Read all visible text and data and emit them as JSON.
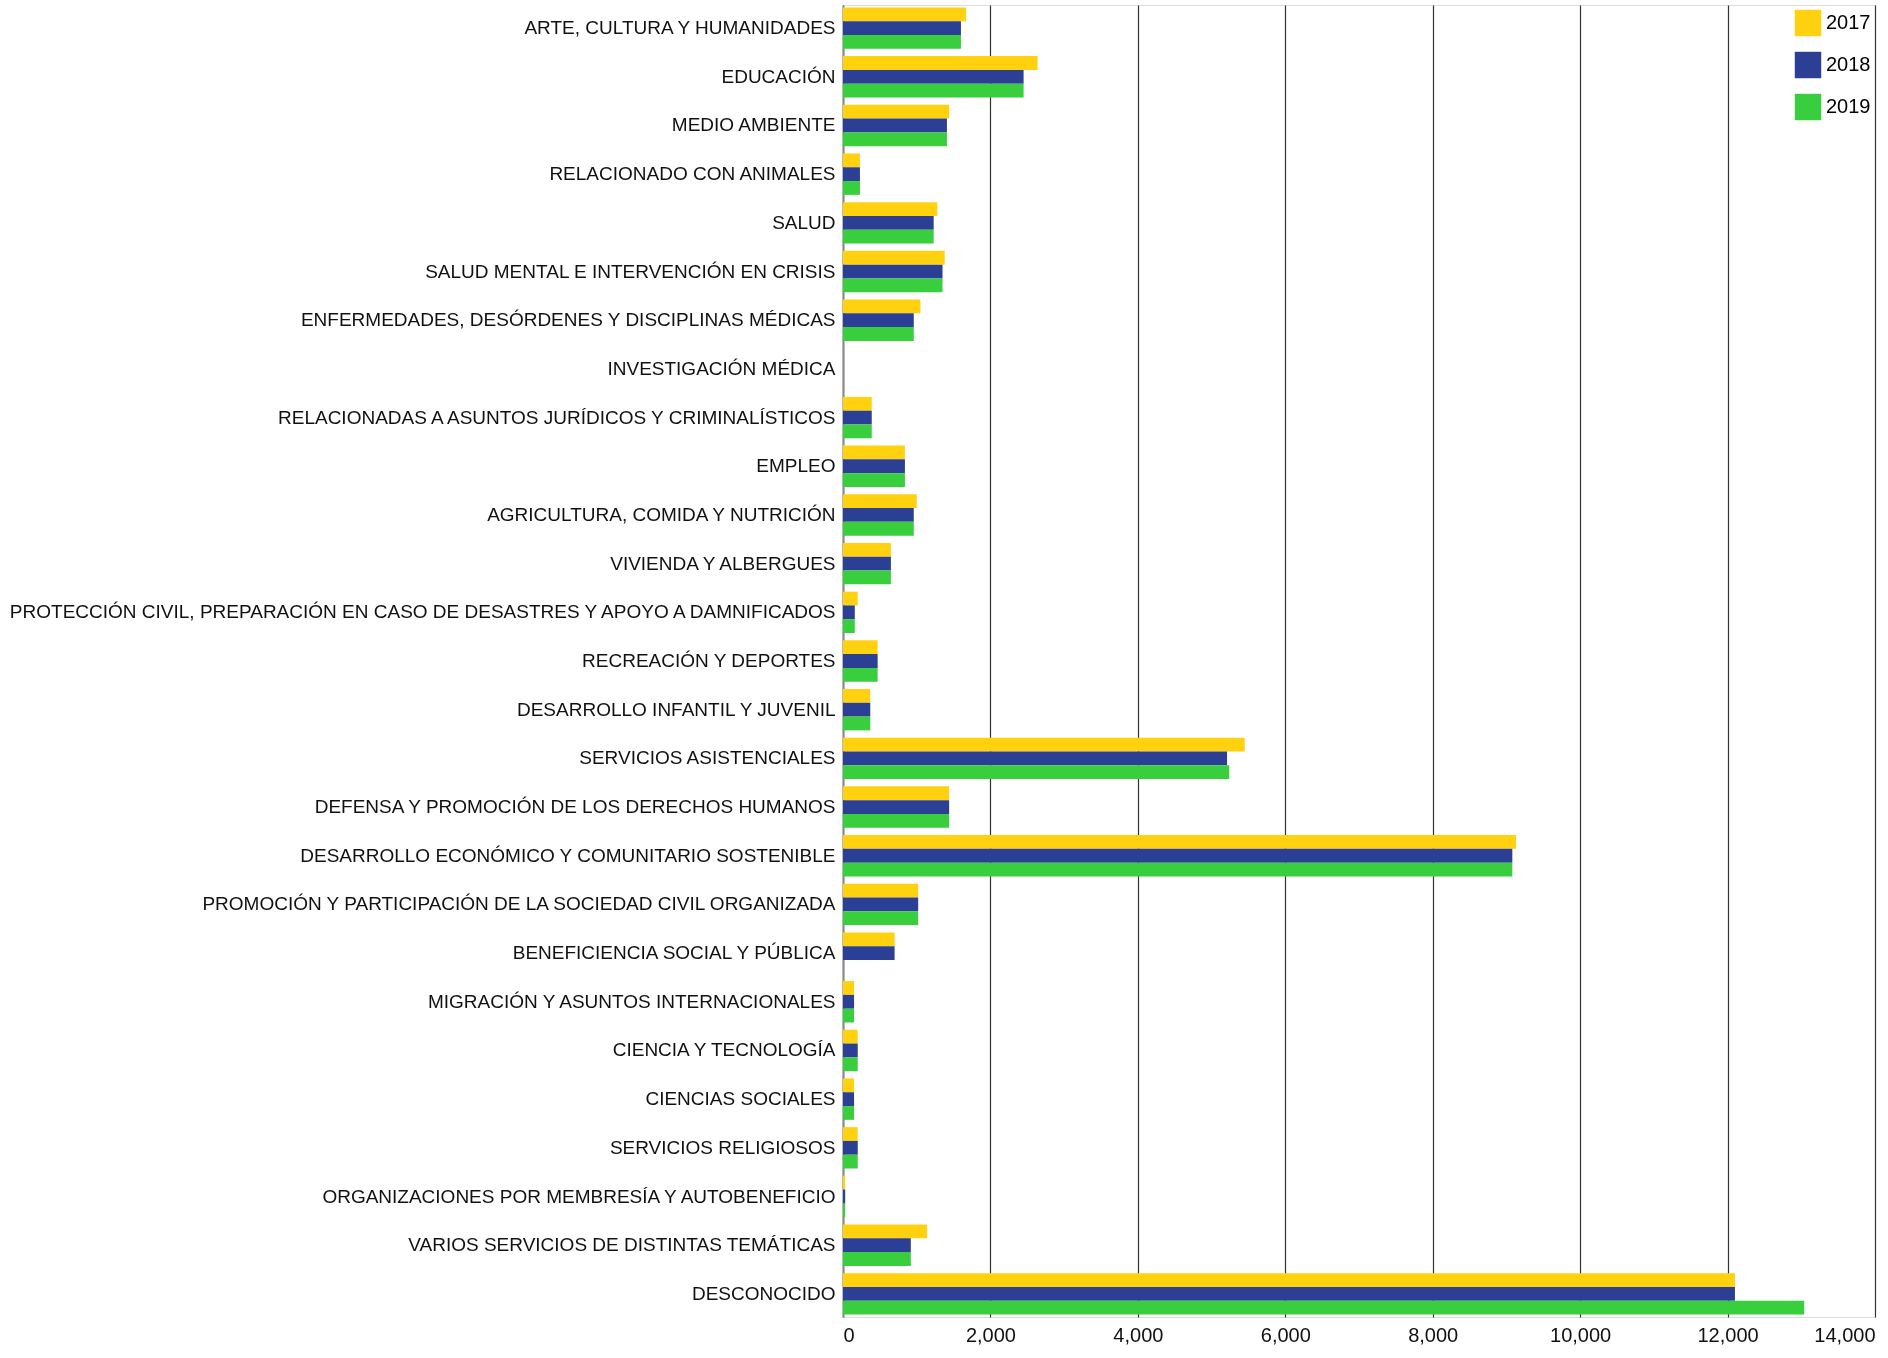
{
  "chart_data": {
    "type": "bar",
    "orientation": "horizontal",
    "categories": [
      "ARTE, CULTURA Y HUMANIDADES",
      "EDUCACIÓN",
      "MEDIO AMBIENTE",
      "RELACIONADO CON ANIMALES",
      "SALUD",
      "SALUD MENTAL E INTERVENCIÓN EN CRISIS",
      "ENFERMEDADES, DESÓRDENES Y DISCIPLINAS MÉDICAS",
      "INVESTIGACIÓN MÉDICA",
      "RELACIONADAS A ASUNTOS JURÍDICOS Y CRIMINALÍSTICOS",
      "EMPLEO",
      "AGRICULTURA, COMIDA Y NUTRICIÓN",
      "VIVIENDA Y ALBERGUES",
      "PROTECCIÓN CIVIL, PREPARACIÓN EN CASO DE DESASTRES Y APOYO A DAMNIFICADOS",
      "RECREACIÓN Y DEPORTES",
      "DESARROLLO INFANTIL Y JUVENIL",
      "SERVICIOS ASISTENCIALES",
      "DEFENSA Y PROMOCIÓN DE LOS DERECHOS HUMANOS",
      "DESARROLLO ECONÓMICO Y COMUNITARIO SOSTENIBLE",
      "PROMOCIÓN Y PARTICIPACIÓN DE LA SOCIEDAD CIVIL ORGANIZADA",
      "BENEFICIENCIA SOCIAL  Y PÚBLICA",
      "MIGRACIÓN Y ASUNTOS INTERNACIONALES",
      "CIENCIA Y TECNOLOGÍA",
      "CIENCIAS SOCIALES",
      "SERVICIOS RELIGIOSOS",
      "ORGANIZACIONES POR MEMBRESÍA Y AUTOBENEFICIO",
      "VARIOS SERVICIOS DE DISTINTAS TEMÁTICAS",
      "DESCONOCIDO"
    ],
    "series": [
      {
        "name": "2017",
        "color": "#ffd10f",
        "values": [
          1670,
          2640,
          1440,
          230,
          1280,
          1380,
          1050,
          0,
          390,
          840,
          1000,
          650,
          200,
          470,
          370,
          5450,
          1440,
          9130,
          1020,
          700,
          150,
          200,
          150,
          200,
          30,
          1140,
          12100
        ]
      },
      {
        "name": "2018",
        "color": "#2b4094",
        "values": [
          1600,
          2450,
          1410,
          230,
          1230,
          1350,
          960,
          0,
          390,
          840,
          960,
          650,
          160,
          470,
          370,
          5210,
          1440,
          9080,
          1020,
          700,
          150,
          200,
          150,
          200,
          30,
          920,
          12100
        ]
      },
      {
        "name": "2019",
        "color": "#39ce3e",
        "values": [
          1600,
          2450,
          1410,
          230,
          1230,
          1350,
          960,
          0,
          390,
          840,
          960,
          650,
          160,
          470,
          370,
          5240,
          1440,
          9080,
          1020,
          null,
          150,
          200,
          150,
          200,
          30,
          920,
          13040
        ]
      }
    ],
    "xlim": [
      0,
      14000
    ],
    "xticks": [
      0,
      {
        "value": 2000,
        "label": "2,000"
      },
      {
        "value": 4000,
        "label": "4,000"
      },
      {
        "value": 6000,
        "label": "6,000"
      },
      {
        "value": 8000,
        "label": "8,000"
      },
      {
        "value": 10000,
        "label": "10,000"
      },
      {
        "value": 12000,
        "label": "12,000"
      },
      {
        "value": 14000,
        "label": "14,000"
      }
    ],
    "grid": "x",
    "legend": "top right"
  }
}
